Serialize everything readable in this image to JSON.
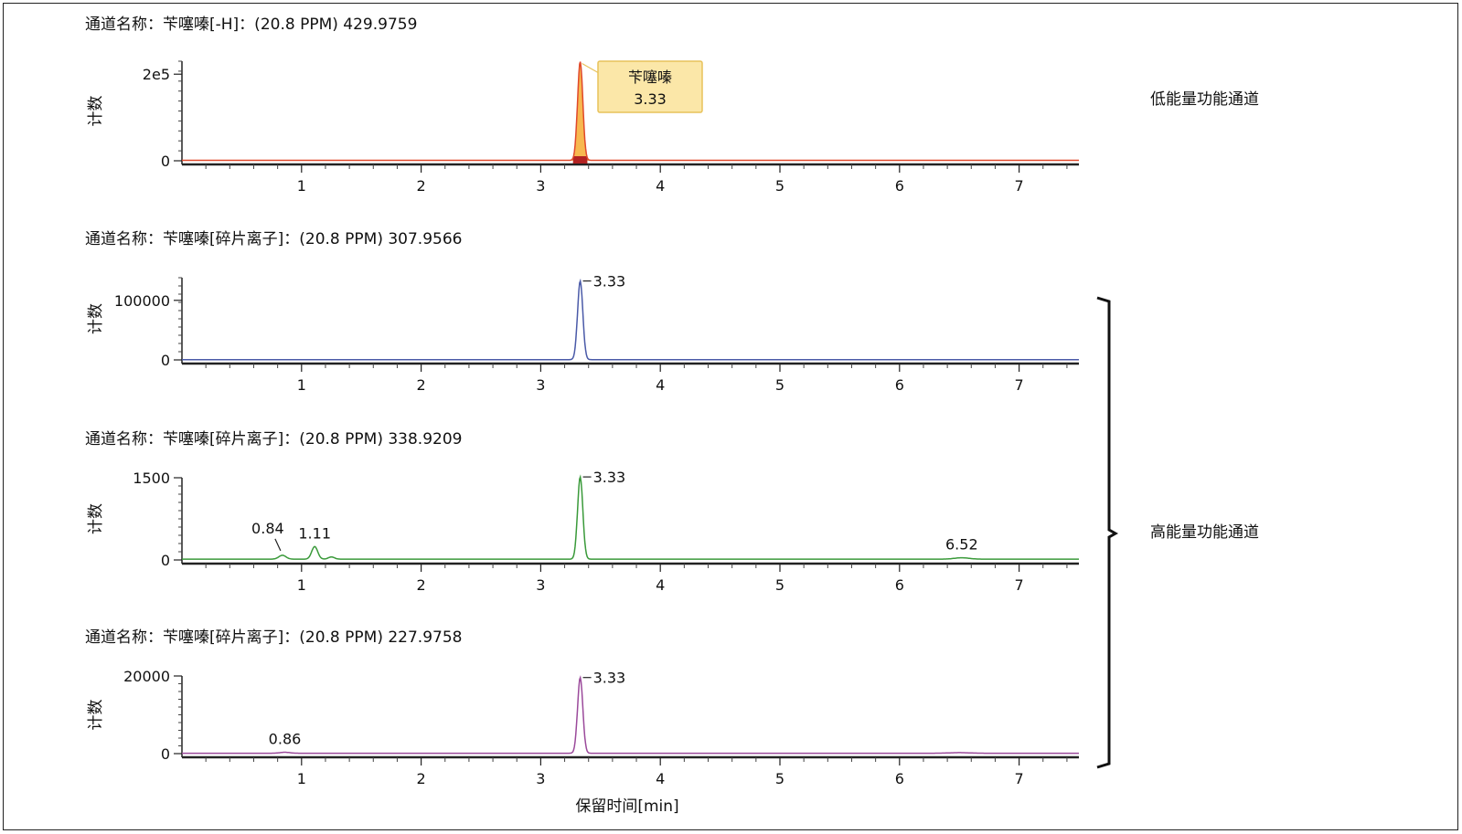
{
  "y_label": "计数",
  "x_label": "保留时间[min]",
  "group_labels": {
    "low": "低能量功能通道",
    "high": "高能量功能通道"
  },
  "chart_data": [
    {
      "type": "line",
      "title": "通道名称：苄噻嗪[-H]：(20.8 PPM) 429.9759",
      "xlabel": "",
      "ylabel": "计数",
      "xlim": [
        0,
        7.5
      ],
      "ylim": [
        0,
        230000
      ],
      "x_ticks": [
        1,
        2,
        3,
        4,
        5,
        6,
        7
      ],
      "y_ticks": [
        {
          "v": 0,
          "label": "0"
        },
        {
          "v": 200000,
          "label": "2e5"
        }
      ],
      "color": "#e0482b",
      "baseline": 1000,
      "peaks": [
        {
          "x": 3.33,
          "height": 228000,
          "width": 0.022
        }
      ],
      "peak_fill": "#f5a623",
      "callout": {
        "name": "苄噻嗪",
        "value": "3.33"
      },
      "annotations": []
    },
    {
      "type": "line",
      "title": "通道名称：苄噻嗪[碎片离子]：(20.8 PPM) 307.9566",
      "xlabel": "",
      "ylabel": "计数",
      "xlim": [
        0,
        7.5
      ],
      "ylim": [
        0,
        138000
      ],
      "x_ticks": [
        1,
        2,
        3,
        4,
        5,
        6,
        7
      ],
      "y_ticks": [
        {
          "v": 0,
          "label": "0"
        },
        {
          "v": 100000,
          "label": "100000"
        }
      ],
      "color": "#4a5aa8",
      "baseline": 500,
      "peaks": [
        {
          "x": 3.33,
          "height": 132000,
          "width": 0.022
        }
      ],
      "annotations": [
        {
          "x": 3.33,
          "y": 132000,
          "label": "3.33",
          "style": "dash"
        }
      ]
    },
    {
      "type": "line",
      "title": "通道名称：苄噻嗪[碎片离子]：(20.8 PPM) 338.9209",
      "xlabel": "",
      "ylabel": "计数",
      "xlim": [
        0,
        7.5
      ],
      "ylim": [
        0,
        1500
      ],
      "x_ticks": [
        1,
        2,
        3,
        4,
        5,
        6,
        7
      ],
      "y_ticks": [
        {
          "v": 0,
          "label": "0"
        },
        {
          "v": 1500,
          "label": "1500"
        }
      ],
      "color": "#3a9a3a",
      "baseline": 15,
      "peaks": [
        {
          "x": 0.84,
          "height": 70,
          "width": 0.03
        },
        {
          "x": 1.11,
          "height": 230,
          "width": 0.025
        },
        {
          "x": 1.25,
          "height": 40,
          "width": 0.025
        },
        {
          "x": 3.33,
          "height": 1500,
          "width": 0.022
        },
        {
          "x": 6.52,
          "height": 25,
          "width": 0.06
        }
      ],
      "annotations": [
        {
          "x": 3.33,
          "y": 1500,
          "label": "3.33",
          "style": "dash"
        },
        {
          "x": 0.84,
          "y": 70,
          "label": "0.84",
          "style": "leader"
        },
        {
          "x": 1.11,
          "y": 230,
          "label": "1.11",
          "style": "above"
        },
        {
          "x": 6.52,
          "y": 25,
          "label": "6.52",
          "style": "above"
        }
      ]
    },
    {
      "type": "line",
      "title": "通道名称：苄噻嗪[碎片离子]：(20.8 PPM) 227.9758",
      "xlabel": "保留时间[min]",
      "ylabel": "计数",
      "xlim": [
        0,
        7.5
      ],
      "ylim": [
        0,
        20000
      ],
      "x_ticks": [
        1,
        2,
        3,
        4,
        5,
        6,
        7
      ],
      "y_ticks": [
        {
          "v": 0,
          "label": "0"
        },
        {
          "v": 20000,
          "label": "20000"
        }
      ],
      "color": "#9b4a9b",
      "baseline": 100,
      "peaks": [
        {
          "x": 0.86,
          "height": 250,
          "width": 0.04
        },
        {
          "x": 3.33,
          "height": 19500,
          "width": 0.022
        },
        {
          "x": 6.5,
          "height": 150,
          "width": 0.08
        }
      ],
      "annotations": [
        {
          "x": 3.33,
          "y": 19500,
          "label": "3.33",
          "style": "dash"
        },
        {
          "x": 0.86,
          "y": 250,
          "label": "0.86",
          "style": "above"
        }
      ]
    }
  ]
}
